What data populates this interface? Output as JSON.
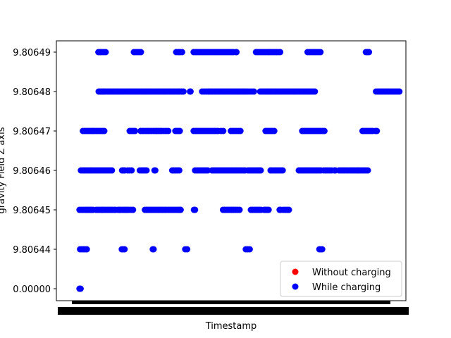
{
  "chart_data": {
    "type": "scatter",
    "title": "",
    "xlabel": "Timestamp",
    "ylabel": "gravity Field Z axis",
    "y_categories": [
      "0.00000",
      "9.80644",
      "9.80645",
      "9.80646",
      "9.80647",
      "9.80648",
      "9.80649"
    ],
    "x_range": [
      0,
      100
    ],
    "grid": false,
    "legend_position": "lower-right",
    "series": [
      {
        "name": "Without charging",
        "color": "#ff0000",
        "points": []
      },
      {
        "name": "While charging",
        "color": "#0000ff",
        "runs": {
          "9.80649": [
            [
              8.9,
              11.5
            ],
            [
              21.5,
              24.0
            ],
            [
              36.5,
              38.6
            ],
            [
              42.7,
              56.8
            ],
            [
              57.7,
              57.9
            ],
            [
              64.8,
              73.4
            ],
            [
              83.1,
              87.7
            ],
            [
              103.8,
              104.9
            ]
          ],
          "9.80648": [
            [
              9.0,
              10.7
            ],
            [
              10.9,
              31.0
            ],
            [
              31.6,
              39.1
            ],
            [
              41.4,
              41.6
            ],
            [
              45.7,
              47.8
            ],
            [
              48.2,
              60.7
            ],
            [
              61.3,
              64.1
            ],
            [
              66.3,
              85.7
            ],
            [
              107.4,
              115.7
            ]
          ],
          "9.80647": [
            [
              3.4,
              6.5
            ],
            [
              6.9,
              11.0
            ],
            [
              20.0,
              21.9
            ],
            [
              23.9,
              29.2
            ],
            [
              29.6,
              31.4
            ],
            [
              32.2,
              33.7
            ],
            [
              36.2,
              37.8
            ],
            [
              42.7,
              51.4
            ],
            [
              52.4,
              53.2
            ],
            [
              55.9,
              59.3
            ],
            [
              68.2,
              71.3
            ],
            [
              81.2,
              89.1
            ],
            [
              102.6,
              106.2
            ],
            [
              107.2,
              107.7
            ]
          ],
          "9.80646": [
            [
              2.7,
              13.7
            ],
            [
              17.3,
              18.3
            ],
            [
              19.3,
              20.7
            ],
            [
              23.6,
              26.0
            ],
            [
              28.8,
              29.1
            ],
            [
              35.1,
              37.6
            ],
            [
              43.2,
              47.7
            ],
            [
              49.2,
              61.0
            ],
            [
              62.0,
              65.0
            ],
            [
              65.5,
              66.5
            ],
            [
              70.0,
              70.5
            ],
            [
              71.2,
              74.3
            ],
            [
              80.0,
              87.9
            ],
            [
              88.9,
              91.6
            ],
            [
              92.6,
              93.0
            ],
            [
              94.3,
              104.5
            ]
          ],
          "9.80645": [
            [
              2.2,
              4.2
            ],
            [
              4.7,
              7.0
            ],
            [
              8.1,
              10.1
            ],
            [
              10.3,
              14.5
            ],
            [
              15.0,
              15.9
            ],
            [
              16.4,
              16.8
            ],
            [
              17.5,
              19.7
            ],
            [
              20.5,
              21.2
            ],
            [
              25.4,
              31.4
            ],
            [
              31.9,
              37.0
            ],
            [
              37.6,
              38.1
            ],
            [
              42.8,
              43.2
            ],
            [
              53.1,
              56.7
            ],
            [
              57.0,
              59.0
            ],
            [
              63.0,
              66.6
            ],
            [
              67.7,
              69.3
            ],
            [
              73.2,
              73.6
            ],
            [
              74.5,
              76.5
            ]
          ],
          "9.80644": [
            [
              2.4,
              4.8
            ],
            [
              17.2,
              18.2
            ],
            [
              28.2,
              28.5
            ],
            [
              39.7,
              40.4
            ],
            [
              61.2,
              62.6
            ],
            [
              87.3,
              88.3
            ]
          ],
          "0.00000": [
            [
              2.2,
              2.6
            ]
          ]
        }
      }
    ]
  }
}
